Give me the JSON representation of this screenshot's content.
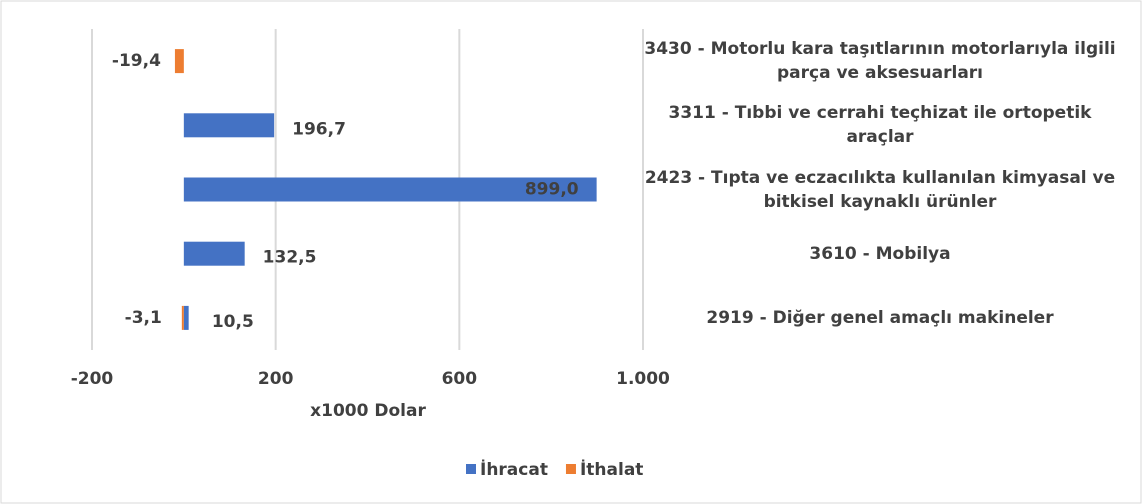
{
  "chart_data": {
    "type": "bar",
    "orientation": "horizontal",
    "categories": [
      "3430 - Motorlu kara taşıtlarının motorlarıyla ilgili parça ve aksesuarları",
      "3311 - Tıbbi ve cerrahi teçhizat ile ortopetik araçlar",
      "2423 - Tıpta ve eczacılıkta kullanılan kimyasal ve bitkisel kaynaklı ürünler",
      "3610 - Mobilya",
      "2919 - Diğer genel amaçlı makineler"
    ],
    "series": [
      {
        "name": "İhracat",
        "color": "#4472c4",
        "values": [
          null,
          196.7,
          899.0,
          132.5,
          10.5
        ],
        "value_labels": [
          null,
          "196,7",
          "899,0",
          "132,5",
          "10,5"
        ]
      },
      {
        "name": "İthalat",
        "color": "#ed7d31",
        "values": [
          -19.4,
          null,
          null,
          null,
          -3.1
        ],
        "value_labels": [
          "-19,4",
          null,
          null,
          null,
          "-3,1"
        ]
      }
    ],
    "xlabel": "x1000 Dolar",
    "xlim": [
      -200,
      1000
    ],
    "xticks": [
      -200,
      200,
      600,
      {
        "value": 1000,
        "label": "1.000"
      }
    ],
    "grid": true,
    "legend": "bottom"
  }
}
